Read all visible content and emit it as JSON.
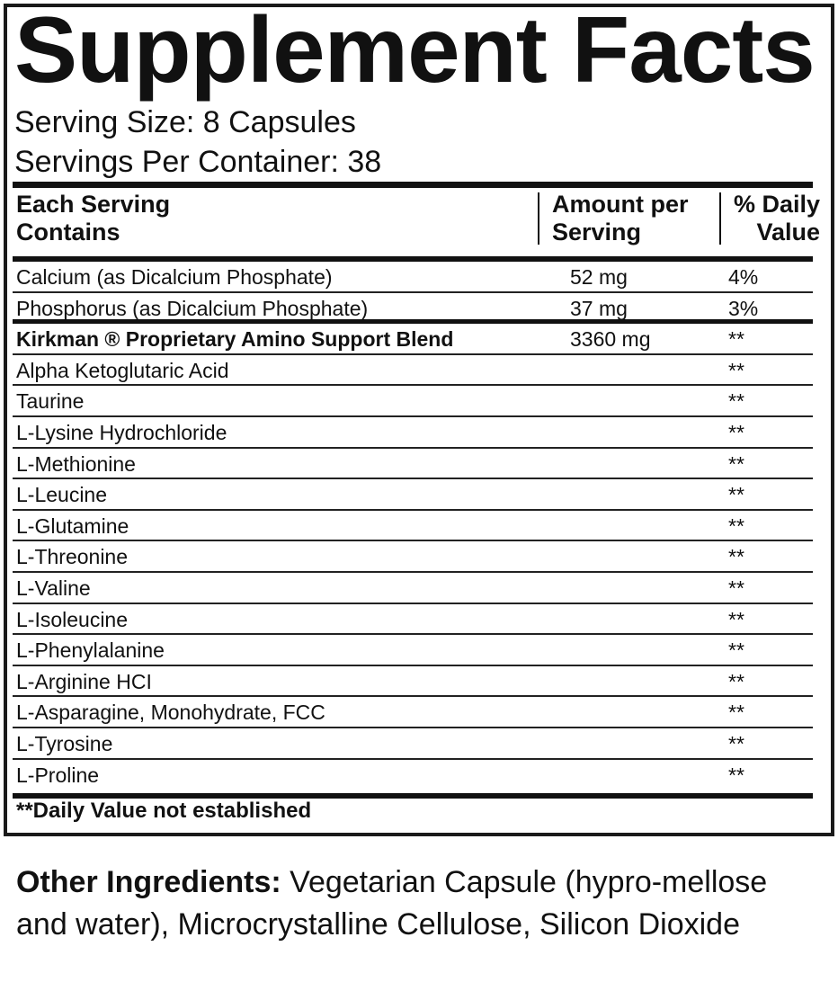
{
  "label": {
    "title": "Supplement Facts",
    "serving_size": "Serving Size: 8 Capsules",
    "servings_per_container": "Servings Per Container: 38",
    "headers": {
      "name": "Each Serving Contains",
      "name_line1": "Each Serving",
      "name_line2": "Contains",
      "amount_line1": "Amount per",
      "amount_line2": "Serving",
      "dv_line1": "% Daily",
      "dv_line2": "Value"
    },
    "rows": [
      {
        "name": "Calcium (as Dicalcium Phosphate)",
        "amount": "52 mg",
        "dv": "4%"
      },
      {
        "name": "Phosphorus (as Dicalcium Phosphate)",
        "amount": "37 mg",
        "dv": "3%"
      },
      {
        "name": "Kirkman ® Proprietary Amino Support Blend",
        "amount": "3360 mg",
        "dv": "**",
        "bold": true
      },
      {
        "name": "Alpha Ketoglutaric Acid",
        "amount": "",
        "dv": "**"
      },
      {
        "name": "Taurine",
        "amount": "",
        "dv": "**"
      },
      {
        "name": "L-Lysine Hydrochloride",
        "amount": "",
        "dv": "**"
      },
      {
        "name": "L-Methionine",
        "amount": "",
        "dv": "**"
      },
      {
        "name": "L-Leucine",
        "amount": "",
        "dv": "**"
      },
      {
        "name": "L-Glutamine",
        "amount": "",
        "dv": "**"
      },
      {
        "name": "L-Threonine",
        "amount": "",
        "dv": "**"
      },
      {
        "name": "L-Valine",
        "amount": "",
        "dv": "**"
      },
      {
        "name": "L-Isoleucine",
        "amount": "",
        "dv": "**"
      },
      {
        "name": "L-Phenylalanine",
        "amount": "",
        "dv": "**"
      },
      {
        "name": "L-Arginine HCI",
        "amount": "",
        "dv": "**"
      },
      {
        "name": "L-Asparagine, Monohydrate, FCC",
        "amount": "",
        "dv": "**"
      },
      {
        "name": "L-Tyrosine",
        "amount": "",
        "dv": "**"
      },
      {
        "name": "L-Proline",
        "amount": "",
        "dv": "**"
      }
    ],
    "footnote": "**Daily Value not established"
  },
  "other_ingredients": {
    "label": "Other Ingredients:",
    "text": " Vegetarian Capsule (hypro-mellose and water), Microcrystalline Cellulose, Silicon Dioxide"
  }
}
